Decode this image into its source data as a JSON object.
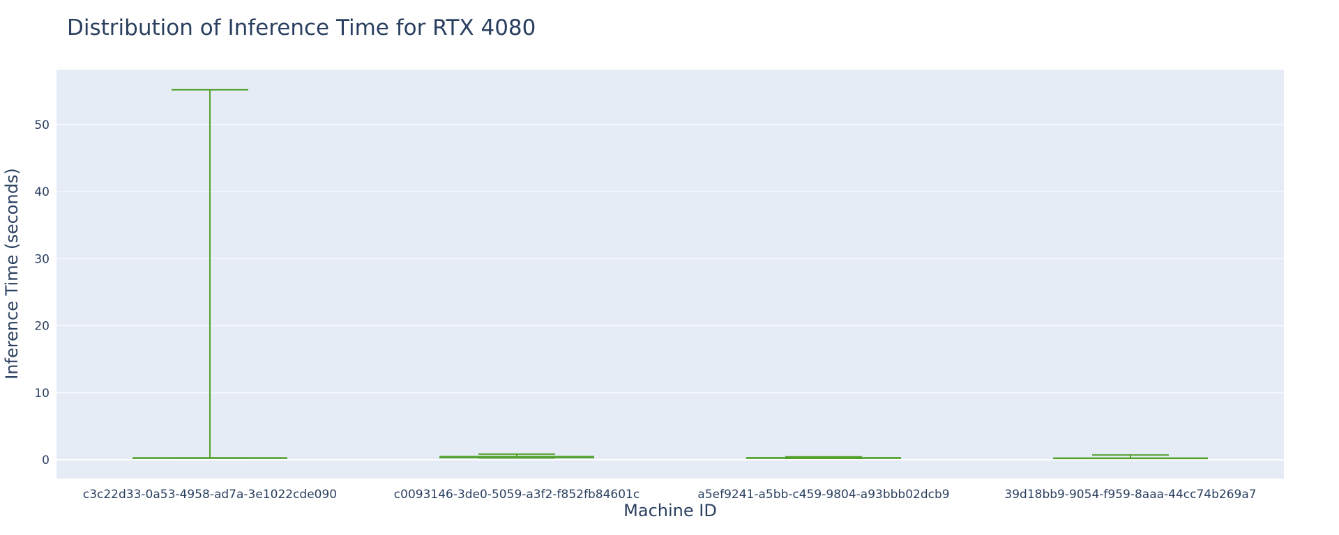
{
  "chart_data": {
    "type": "box",
    "title": "Distribution of Inference Time for RTX 4080",
    "xlabel": "Machine ID",
    "ylabel": "Inference Time (seconds)",
    "ylim": [
      -2.8,
      58.2
    ],
    "yticks": [
      0,
      10,
      20,
      30,
      40,
      50
    ],
    "grid": true,
    "color": "#52a12c",
    "plot_background": "#e5ecf6",
    "categories": [
      "c3c22d33-0a53-4958-ad7a-3e1022cde090",
      "c0093146-3de0-5059-a3f2-f852fb84601c",
      "a5ef9241-a5bb-c459-9804-a93bbb02dcb9",
      "39d18bb9-9054-f959-8aaa-44cc74b269a7"
    ],
    "boxes": [
      {
        "min": 0.28,
        "q1": 0.28,
        "median": 0.28,
        "q3": 0.28,
        "max": 55.2
      },
      {
        "min": 0.28,
        "q1": 0.33,
        "median": 0.4,
        "q3": 0.48,
        "max": 0.85
      },
      {
        "min": 0.22,
        "q1": 0.24,
        "median": 0.26,
        "q3": 0.31,
        "max": 0.45
      },
      {
        "min": 0.21,
        "q1": 0.22,
        "median": 0.23,
        "q3": 0.25,
        "max": 0.72
      }
    ]
  }
}
